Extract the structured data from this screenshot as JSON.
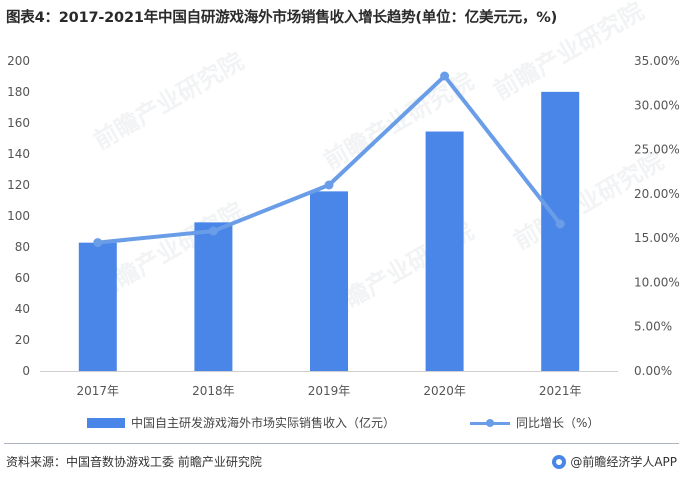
{
  "title": "图表4：2017-2021年中国自研游戏海外市场销售收入增长趋势(单位：亿美元元，%)",
  "legend": {
    "bar_label": "中国自主研发游戏海外市场实际销售收入（亿元）",
    "line_label": "同比增长（%）"
  },
  "footer": {
    "source": "资料来源：中国音数协游戏工委  前瞻产业研究院",
    "credit": "@前瞻经济学人APP"
  },
  "watermark": "前瞻产业研究院",
  "colors": {
    "bar": "#4a86e8",
    "line": "#6a9de8",
    "axis_text": "#555555"
  },
  "chart_data": {
    "type": "bar",
    "categories": [
      "2017年",
      "2018年",
      "2019年",
      "2020年",
      "2021年"
    ],
    "series": [
      {
        "name": "中国自主研发游戏海外市场实际销售收入（亿元）",
        "type": "bar",
        "axis": "left",
        "values": [
          82.8,
          95.9,
          115.9,
          154.5,
          180.1
        ]
      },
      {
        "name": "同比增长（%）",
        "type": "line",
        "axis": "right",
        "values": [
          14.5,
          15.8,
          21.0,
          33.3,
          16.6
        ]
      }
    ],
    "y_left": {
      "min": 0,
      "max": 200,
      "step": 20,
      "ticks": [
        "0",
        "20",
        "40",
        "60",
        "80",
        "100",
        "120",
        "140",
        "160",
        "180",
        "200"
      ]
    },
    "y_right": {
      "min": 0,
      "max": 35,
      "step": 5,
      "ticks": [
        "0.00%",
        "5.00%",
        "10.00%",
        "15.00%",
        "20.00%",
        "25.00%",
        "30.00%",
        "35.00%"
      ]
    },
    "grid": false,
    "legend_position": "bottom"
  }
}
